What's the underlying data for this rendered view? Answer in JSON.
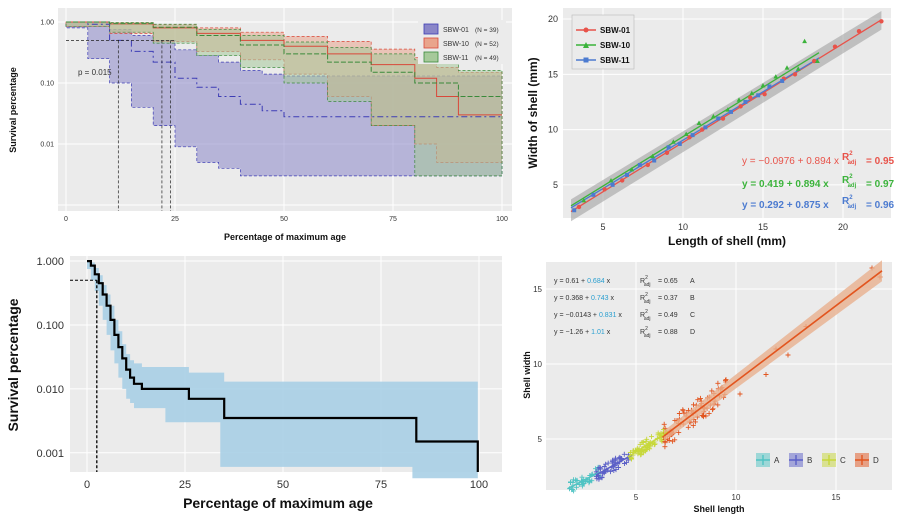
{
  "chart_data": [
    {
      "type": "area",
      "id": "p1",
      "xlabel": "Percentage of maximum age",
      "ylabel": "Survival percentage",
      "y_scale": "log",
      "xlim": [
        0,
        100
      ],
      "ylim": [
        0.001,
        1.0
      ],
      "x_ticks": [
        "0",
        "25",
        "50",
        "75",
        "100"
      ],
      "y_ticks": [
        "0.01",
        "0.10",
        "1.00"
      ],
      "annotation": "p = 0.015",
      "legend_position": "top-right",
      "series": [
        {
          "name": "SBW-01",
          "n_label": "(N = 39)",
          "color": "#3d3db5",
          "fill": "#8a86c8",
          "x": [
            0,
            5,
            10,
            15,
            20,
            25,
            30,
            35,
            40,
            45,
            50,
            55,
            60,
            70,
            80,
            85,
            100
          ],
          "y": [
            1.0,
            0.92,
            0.5,
            0.33,
            0.22,
            0.12,
            0.085,
            0.06,
            0.045,
            0.035,
            0.028,
            0.028,
            0.028,
            0.028,
            0.028,
            0.028,
            0.028
          ],
          "lower": [
            1.0,
            0.8,
            0.25,
            0.1,
            0.04,
            0.02,
            0.009,
            0.005,
            0.004,
            0.003,
            0.003,
            0.003,
            0.003,
            0.003,
            0.003,
            0.003,
            0.003
          ],
          "upper": [
            1.0,
            0.99,
            0.75,
            0.6,
            0.5,
            0.35,
            0.28,
            0.22,
            0.16,
            0.14,
            0.13,
            0.13,
            0.13,
            0.13,
            0.13,
            0.13,
            0.13
          ]
        },
        {
          "name": "SBW-10",
          "n_label": "(N = 52)",
          "color": "#d9483a",
          "fill": "#e9a48c",
          "x": [
            0,
            10,
            20,
            30,
            40,
            50,
            60,
            70,
            80,
            85,
            90,
            100
          ],
          "y": [
            1.0,
            0.93,
            0.8,
            0.65,
            0.5,
            0.4,
            0.3,
            0.2,
            0.12,
            0.06,
            0.03,
            0.03
          ],
          "lower": [
            1.0,
            0.85,
            0.65,
            0.48,
            0.33,
            0.24,
            0.14,
            0.06,
            0.02,
            0.01,
            0.005,
            0.005
          ],
          "upper": [
            1.0,
            0.99,
            0.9,
            0.8,
            0.68,
            0.58,
            0.48,
            0.36,
            0.26,
            0.18,
            0.15,
            0.15
          ]
        },
        {
          "name": "SBW-11",
          "n_label": "(N = 49)",
          "color": "#3a8a3a",
          "fill": "#a6c99a",
          "x": [
            0,
            10,
            20,
            30,
            40,
            50,
            60,
            70,
            80,
            90,
            100
          ],
          "y": [
            1.0,
            0.94,
            0.82,
            0.6,
            0.42,
            0.3,
            0.22,
            0.15,
            0.1,
            0.06,
            0.06
          ],
          "lower": [
            1.0,
            0.85,
            0.68,
            0.45,
            0.28,
            0.18,
            0.1,
            0.05,
            0.02,
            0.003,
            0.003
          ],
          "upper": [
            1.0,
            0.99,
            0.92,
            0.76,
            0.6,
            0.47,
            0.38,
            0.3,
            0.24,
            0.16,
            0.16
          ]
        }
      ]
    },
    {
      "type": "scatter",
      "id": "p2",
      "xlabel": "Length of shell (mm)",
      "ylabel": "Width of shell (mm)",
      "xlim": [
        2.5,
        23
      ],
      "ylim": [
        2,
        21
      ],
      "x_ticks": [
        5,
        10,
        15,
        20
      ],
      "y_ticks": [
        5,
        10,
        15,
        20
      ],
      "legend_position": "top-left",
      "series": [
        {
          "name": "SBW-01",
          "color": "#e8534a",
          "intercept": -0.0976,
          "slope": 0.894,
          "equation": "y = −0.0976 + 0.894 x",
          "r2_label": "= 0.95",
          "x": [
            3.5,
            5.1,
            6.2,
            7.8,
            9.0,
            10.4,
            11.2,
            12.5,
            13.6,
            14.2,
            15.1,
            16.3,
            17.0,
            18.2,
            19.5,
            21.0,
            22.4
          ],
          "y": [
            3.0,
            4.6,
            5.4,
            6.8,
            7.9,
            9.3,
            10.0,
            11.0,
            12.1,
            12.9,
            13.2,
            14.6,
            15.0,
            16.2,
            17.5,
            18.9,
            19.8
          ]
        },
        {
          "name": "SBW-10",
          "color": "#3bb33b",
          "intercept": 0.419,
          "slope": 0.894,
          "equation": "y = 0.419 + 0.894 x",
          "r2_label": "= 0.97",
          "x": [
            3.8,
            5.5,
            6.8,
            8.1,
            9.4,
            10.2,
            11.0,
            11.9,
            12.8,
            13.5,
            14.3,
            15.0,
            15.8,
            16.5,
            17.2,
            17.6,
            18.4
          ],
          "y": [
            3.6,
            5.4,
            6.4,
            7.6,
            8.9,
            9.6,
            10.6,
            11.2,
            11.8,
            12.7,
            13.3,
            14.0,
            14.8,
            15.6,
            15.5,
            18.0,
            16.2
          ]
        },
        {
          "name": "SBW-11",
          "color": "#4c7bd0",
          "intercept": 0.292,
          "slope": 0.875,
          "equation": "y = 0.292 + 0.875 x",
          "r2_label": "= 0.96",
          "x": [
            3.2,
            4.4,
            5.6,
            6.5,
            7.3,
            8.2,
            9.1,
            9.8,
            10.6,
            11.4,
            12.2,
            13.0,
            13.9,
            14.7,
            15.4,
            16.2
          ],
          "y": [
            2.7,
            4.1,
            5.0,
            5.9,
            6.8,
            7.2,
            8.4,
            8.7,
            9.5,
            10.2,
            11.0,
            11.6,
            12.5,
            13.1,
            13.9,
            14.4
          ]
        }
      ]
    },
    {
      "type": "line",
      "id": "p3",
      "xlabel": "Percentage of maximum age",
      "ylabel": "Survival percentage",
      "y_scale": "log",
      "xlim": [
        0,
        100
      ],
      "ylim": [
        0.0005,
        1.2
      ],
      "x_ticks": [
        0,
        25,
        50,
        75,
        100
      ],
      "y_ticks": [
        "0.001",
        "0.010",
        "0.100",
        "1.000"
      ],
      "color": "#000000",
      "ci_fill": "#a9cfe6",
      "median_x": 2.5,
      "x": [
        0,
        1,
        2,
        3,
        4,
        5,
        6,
        7,
        8,
        9,
        10,
        11,
        12,
        14,
        16,
        20,
        26,
        30,
        34,
        35,
        40,
        50,
        60,
        70,
        80,
        83,
        84,
        90,
        99.5,
        99.7
      ],
      "y": [
        1.0,
        0.85,
        0.62,
        0.45,
        0.3,
        0.2,
        0.12,
        0.07,
        0.045,
        0.03,
        0.02,
        0.015,
        0.012,
        0.01,
        0.01,
        0.01,
        0.007,
        0.007,
        0.007,
        0.0035,
        0.0035,
        0.0035,
        0.0035,
        0.0035,
        0.0035,
        0.0035,
        0.0015,
        0.0015,
        0.0015,
        0.0005
      ],
      "lower": [
        1.0,
        0.75,
        0.5,
        0.34,
        0.2,
        0.12,
        0.07,
        0.04,
        0.025,
        0.015,
        0.01,
        0.007,
        0.006,
        0.005,
        0.005,
        0.005,
        0.003,
        0.003,
        0.003,
        0.0006,
        0.0006,
        0.0006,
        0.0006,
        0.0006,
        0.0006,
        0.0006,
        0.0004,
        0.0004,
        0.0004,
        0.0004
      ],
      "upper": [
        1.0,
        0.95,
        0.78,
        0.6,
        0.42,
        0.3,
        0.2,
        0.12,
        0.08,
        0.05,
        0.035,
        0.028,
        0.025,
        0.022,
        0.022,
        0.022,
        0.018,
        0.018,
        0.018,
        0.013,
        0.013,
        0.013,
        0.013,
        0.013,
        0.013,
        0.013,
        0.013,
        0.013,
        0.013,
        0.013
      ]
    },
    {
      "type": "scatter",
      "id": "p4",
      "xlabel": "Shell length",
      "ylabel": "Shell width",
      "xlim": [
        0.5,
        17.8
      ],
      "ylim": [
        1.6,
        16.8
      ],
      "x_ticks": [
        5,
        10,
        15
      ],
      "y_ticks": [
        5,
        10,
        15
      ],
      "legend_position": "bottom-right",
      "series": [
        {
          "name": "A",
          "color": "#4fc3c3",
          "intercept": 0.61,
          "slope": 0.684,
          "eq_a": "y = 0.61 + ",
          "eq_b": "0.684",
          "eq_c": " x",
          "r2_label": "= 0.65",
          "range": [
            1.6,
            3.2
          ]
        },
        {
          "name": "B",
          "color": "#5b5fc7",
          "intercept": 0.368,
          "slope": 0.743,
          "eq_a": "y = 0.368 + ",
          "eq_b": "0.743",
          "eq_c": " x",
          "r2_label": "= 0.37",
          "range": [
            3.0,
            4.8
          ]
        },
        {
          "name": "C",
          "color": "#c7d83a",
          "intercept": -0.0143,
          "slope": 0.831,
          "eq_a": "y = −0.0143 + ",
          "eq_b": "0.831",
          "eq_c": " x",
          "r2_label": "= 0.49",
          "range": [
            4.6,
            6.6
          ]
        },
        {
          "name": "D",
          "color": "#e2551f",
          "intercept": -1.26,
          "slope": 1.01,
          "eq_a": "y = −1.26 + ",
          "eq_b": "1.01",
          "eq_c": " x",
          "r2_label": "= 0.88",
          "range": [
            6.4,
            9.6
          ]
        }
      ]
    }
  ]
}
